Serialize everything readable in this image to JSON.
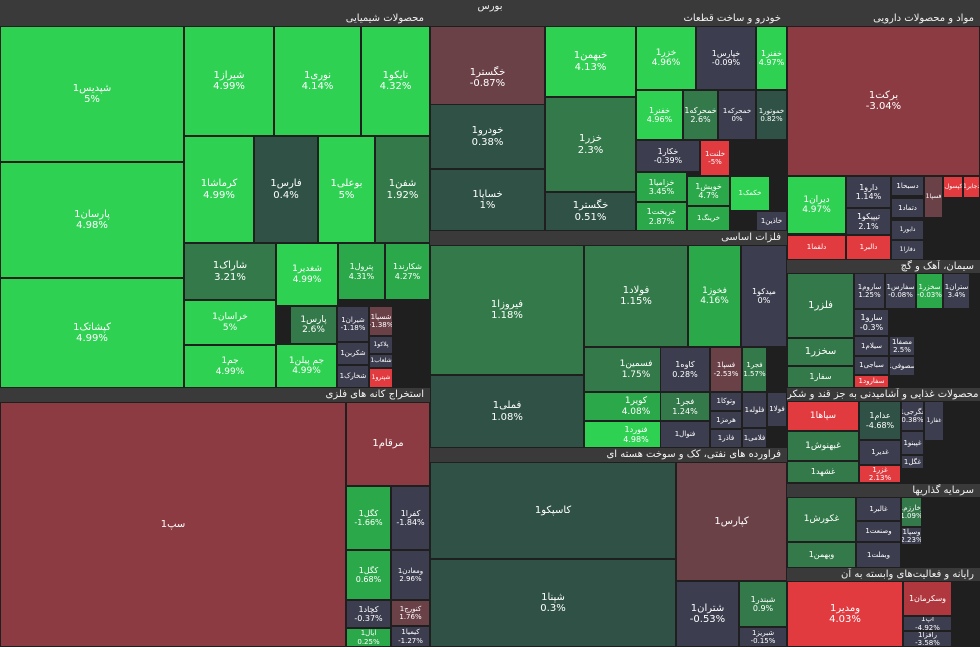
{
  "title": "بورس",
  "colors": {
    "g3": "#2fd153",
    "g2": "#2aa84a",
    "g1": "#33794a",
    "g0": "#2f5146",
    "z": "#3c3d4f",
    "r1": "#6b4148",
    "r2": "#8d3b43",
    "r3": "#b0373e",
    "r4": "#e13b40"
  },
  "sectors": [
    {
      "label": "محصولات شیمیایی"
    },
    {
      "label": "خودرو و ساخت قطعات"
    },
    {
      "label": "مواد و محصولات دارویی"
    },
    {
      "label": "فلزات اساسی"
    },
    {
      "label": "سیمان، آهک و گچ"
    },
    {
      "label": "محصولات غذایی و آشامیدنی به جز قند و شکر"
    },
    {
      "label": "سرمایه گذاریها"
    },
    {
      "label": "رایانه و فعالیت‌های وابسته به آن"
    },
    {
      "label": "استخراج کانه های فلزی"
    },
    {
      "label": "فراورده های نفتی، کک و سوخت هسته ای"
    }
  ],
  "tiles": [
    {
      "name": "شپدیس1",
      "change": "5%"
    },
    {
      "name": "شیراز1",
      "change": "4.99%"
    },
    {
      "name": "نوری1",
      "change": "4.14%"
    },
    {
      "name": "نایکو1",
      "change": "4.32%"
    },
    {
      "name": "پارسان1",
      "change": "4.98%"
    },
    {
      "name": "کرماشا1",
      "change": "4.99%"
    },
    {
      "name": "فارس1",
      "change": "0.4%"
    },
    {
      "name": "بوعلی1",
      "change": "5%"
    },
    {
      "name": "شفن1",
      "change": "1.92%"
    },
    {
      "name": "کپشاتک1",
      "change": "4.99%"
    },
    {
      "name": "شاراک1",
      "change": "3.21%"
    },
    {
      "name": "شغدیر1",
      "change": "4.99%"
    },
    {
      "name": "پترول1",
      "change": "4.31%"
    },
    {
      "name": "شکارند1",
      "change": "4.27%"
    },
    {
      "name": "خراسان1",
      "change": "5%"
    },
    {
      "name": "پارس1",
      "change": "2.6%"
    },
    {
      "name": "شیران1",
      "change": "-1.18%"
    },
    {
      "name": "شسپا1",
      "change": "-1.38%"
    },
    {
      "name": "شکربن1",
      "change": ""
    },
    {
      "name": "پلاکو1",
      "change": ""
    },
    {
      "name": "شلعاب1",
      "change": ""
    },
    {
      "name": "جم1",
      "change": "4.99%"
    },
    {
      "name": "جم پیلن1",
      "change": "4.99%"
    },
    {
      "name": "شخارک1",
      "change": ""
    },
    {
      "name": "شپترو1",
      "change": ""
    },
    {
      "name": "خگستر1",
      "change": "-0.87%"
    },
    {
      "name": "خبهمن1",
      "change": "4.13%"
    },
    {
      "name": "خزر1",
      "change": "4.96%"
    },
    {
      "name": "خپارس1",
      "change": "-0.09%"
    },
    {
      "name": "خفنر1",
      "change": "4.97%"
    },
    {
      "name": "خودرو1",
      "change": "0.38%"
    },
    {
      "name": "خزر1",
      "change": "2.3%"
    },
    {
      "name": "خفنر1",
      "change": "4.96%"
    },
    {
      "name": "خمحرکه1",
      "change": "2.6%"
    },
    {
      "name": "خمحرکه1",
      "change": "0%"
    },
    {
      "name": "خموتور1",
      "change": "0.82%"
    },
    {
      "name": "خکار1",
      "change": "-0.39%"
    },
    {
      "name": "خلنت1",
      "change": "-5%"
    },
    {
      "name": "خساپا1",
      "change": "1%"
    },
    {
      "name": "خگستر1",
      "change": "0.51%"
    },
    {
      "name": "خزامیا1",
      "change": "3.45%"
    },
    {
      "name": "خریخت1",
      "change": "2.87%"
    },
    {
      "name": "خویش1",
      "change": "4.7%"
    },
    {
      "name": "خرینگ1",
      "change": ""
    },
    {
      "name": "خکمک1",
      "change": ""
    },
    {
      "name": "خاذین1",
      "change": ""
    },
    {
      "name": "برکت1",
      "change": "-3.04%"
    },
    {
      "name": "دیران1",
      "change": "4.97%"
    },
    {
      "name": "دارو1",
      "change": "1.14%"
    },
    {
      "name": "تیپیکو1",
      "change": "2.1%"
    },
    {
      "name": "دسبحا1",
      "change": ""
    },
    {
      "name": "دتماد1",
      "change": ""
    },
    {
      "name": "دالبر1",
      "change": ""
    },
    {
      "name": "دلقما1",
      "change": ""
    },
    {
      "name": "دکپسول1",
      "change": ""
    },
    {
      "name": "دابور1",
      "change": ""
    },
    {
      "name": "دفارا1",
      "change": ""
    },
    {
      "name": "فسپا1",
      "change": ""
    },
    {
      "name": "دجابر1",
      "change": ""
    },
    {
      "name": "فیروزا1",
      "change": "1.18%"
    },
    {
      "name": "فولاد1",
      "change": "1.15%"
    },
    {
      "name": "فخوز1",
      "change": "4.16%"
    },
    {
      "name": "میدکو1",
      "change": "0%"
    },
    {
      "name": "فملی1",
      "change": "1.08%"
    },
    {
      "name": "فسمین1",
      "change": "1.75%"
    },
    {
      "name": "کاوه1",
      "change": "0.28%"
    },
    {
      "name": "فسپا1",
      "change": "-2.53%"
    },
    {
      "name": "فجر1",
      "change": "1.57%"
    },
    {
      "name": "کویر1",
      "change": "4.08%"
    },
    {
      "name": "فجر1",
      "change": "1.24%"
    },
    {
      "name": "فنورد1",
      "change": "4.98%"
    },
    {
      "name": "وتوکا1",
      "change": ""
    },
    {
      "name": "هرمز1",
      "change": ""
    },
    {
      "name": "فلوله1",
      "change": ""
    },
    {
      "name": "فولا1",
      "change": ""
    },
    {
      "name": "فاذر1",
      "change": ""
    },
    {
      "name": "فلامی1",
      "change": ""
    },
    {
      "name": "فنوال1",
      "change": ""
    },
    {
      "name": "فلزر1",
      "change": ""
    },
    {
      "name": "ساروم1",
      "change": "1.25%"
    },
    {
      "name": "سفارس1",
      "change": "-0.08%"
    },
    {
      "name": "سخزر1",
      "change": "-0.03%"
    },
    {
      "name": "ستران1",
      "change": "3.4%"
    },
    {
      "name": "سارو1",
      "change": "-0.3%"
    },
    {
      "name": "سخزر1",
      "change": ""
    },
    {
      "name": "مصفا1",
      "change": "2.5%"
    },
    {
      "name": "سیلام1",
      "change": ""
    },
    {
      "name": "سصوفی1",
      "change": ""
    },
    {
      "name": "سفار1",
      "change": ""
    },
    {
      "name": "سباجی1",
      "change": ""
    },
    {
      "name": "سفارود1",
      "change": ""
    },
    {
      "name": "سپاها1",
      "change": ""
    },
    {
      "name": "عدام1",
      "change": "-4.68%"
    },
    {
      "name": "غگرجی1",
      "change": "0.38%"
    },
    {
      "name": "غدیر1",
      "change": ""
    },
    {
      "name": "غپینو1",
      "change": ""
    },
    {
      "name": "غبهنوش1",
      "change": ""
    },
    {
      "name": "غشهد1",
      "change": ""
    },
    {
      "name": "غزر1",
      "change": "2.13%"
    },
    {
      "name": "غگل1",
      "change": ""
    },
    {
      "name": "غفار1",
      "change": ""
    },
    {
      "name": "غکورش1",
      "change": ""
    },
    {
      "name": "غالبر1",
      "change": ""
    },
    {
      "name": "وخارزم1",
      "change": "1.09%"
    },
    {
      "name": "وصنعت1",
      "change": ""
    },
    {
      "name": "وسپا1",
      "change": "2.23%"
    },
    {
      "name": "وبهمن1",
      "change": ""
    },
    {
      "name": "وبملت1",
      "change": ""
    },
    {
      "name": "ومدیر1",
      "change": "4.03%"
    },
    {
      "name": "وسکرمان1",
      "change": ""
    },
    {
      "name": "آپ1",
      "change": "-4.92%"
    },
    {
      "name": "رافزا1",
      "change": "-3.58%"
    },
    {
      "name": "سپ1",
      "change": ""
    },
    {
      "name": "مرقام1",
      "change": ""
    },
    {
      "name": "کگل1",
      "change": "-1.66%"
    },
    {
      "name": "کفرا1",
      "change": "-1.84%"
    },
    {
      "name": "ومعادن1",
      "change": "2.96%"
    },
    {
      "name": "کگل1",
      "change": "0.68%"
    },
    {
      "name": "کچاد1",
      "change": "-0.37%"
    },
    {
      "name": "کنورج1",
      "change": "1.76%"
    },
    {
      "name": "ایال1",
      "change": "0.25%"
    },
    {
      "name": "کیمیا1",
      "change": "-1.27%"
    },
    {
      "name": "کاسپکو1",
      "change": ""
    },
    {
      "name": "کپارس1",
      "change": ""
    },
    {
      "name": "شپنا1",
      "change": "0.3%"
    },
    {
      "name": "شتران1",
      "change": "-0.53%"
    },
    {
      "name": "شبندر1",
      "change": "0.9%"
    },
    {
      "name": "شبریز1",
      "change": "-0.15%"
    },
    {
      "name": "شسپا1",
      "change": "1.73%"
    },
    {
      "name": "شبهرن1",
      "change": ""
    }
  ]
}
